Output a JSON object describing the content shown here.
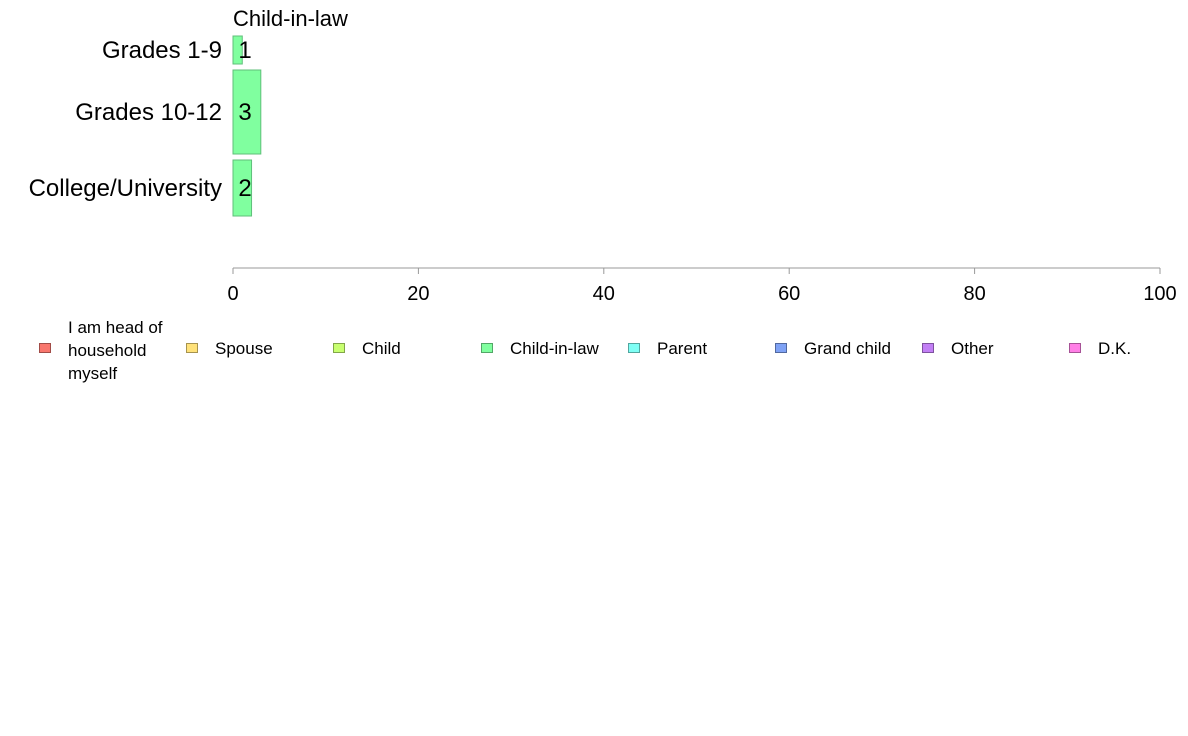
{
  "chart_data": {
    "type": "bar",
    "orientation": "horizontal",
    "title": "Child-in-law",
    "categories": [
      "Grades 1-9",
      "Grades 10-12",
      "College/University"
    ],
    "series": [
      {
        "name": "Child-in-law",
        "values": [
          1,
          3,
          2
        ],
        "color": "#80FF9F"
      }
    ],
    "data_labels": [
      "1",
      "3",
      "2"
    ],
    "xlim": [
      0,
      100
    ],
    "xticks": [
      0,
      20,
      40,
      60,
      80,
      100
    ],
    "grid": false,
    "legend_position": "bottom",
    "legend": [
      {
        "label": "I am head of household myself",
        "color": "#F8766D"
      },
      {
        "label": "Spouse",
        "color": "#FFE27A"
      },
      {
        "label": "Child",
        "color": "#C8FF70"
      },
      {
        "label": "Child-in-law",
        "color": "#80FF9F"
      },
      {
        "label": "Parent",
        "color": "#7FFFF5"
      },
      {
        "label": "Grand child",
        "color": "#7FA2F5"
      },
      {
        "label": "Other",
        "color": "#C27FF5"
      },
      {
        "label": "D.K.",
        "color": "#FF7FE6"
      }
    ]
  }
}
